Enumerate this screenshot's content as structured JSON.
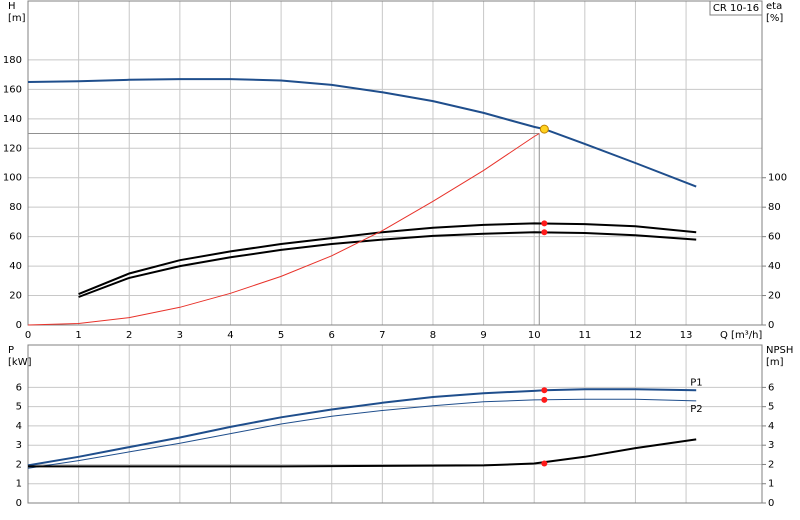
{
  "chart_data": [
    {
      "type": "line",
      "title": "CR 10-16",
      "y_label": [
        "H",
        "[m]"
      ],
      "y2_label": [
        "eta",
        "[%]"
      ],
      "x_label": "Q [m³/h]",
      "xlim": [
        0,
        14.5
      ],
      "xticks": [
        0,
        1,
        2,
        3,
        4,
        5,
        6,
        7,
        8,
        9,
        10,
        11,
        12,
        13
      ],
      "xtick_labels": true,
      "ylim": [
        0,
        220
      ],
      "yticks": [
        0,
        20,
        40,
        60,
        80,
        100,
        120,
        140,
        160,
        180
      ],
      "y2lim": [
        0,
        220
      ],
      "y2ticks": [
        0,
        20,
        40,
        60,
        80,
        100
      ],
      "grid": true,
      "series": [
        {
          "color": "#1f4e8c",
          "style": "thick",
          "axis": "y",
          "x": [
            0,
            1,
            2,
            3,
            4,
            5,
            6,
            7,
            8,
            9,
            10,
            10.2,
            11,
            12,
            13.2
          ],
          "values": [
            165,
            165.5,
            166.5,
            167,
            167,
            166,
            163,
            158,
            152,
            144,
            134.5,
            133,
            123,
            110,
            94
          ]
        },
        {
          "color": "#000000",
          "style": "thick",
          "axis": "y2",
          "x": [
            1,
            2,
            3,
            4,
            5,
            6,
            7,
            8,
            9,
            10,
            11,
            12,
            13.2
          ],
          "values": [
            21,
            35,
            44,
            50,
            55,
            59,
            63,
            66,
            68,
            69,
            68.5,
            67,
            63
          ]
        },
        {
          "color": "#000000",
          "style": "thick",
          "axis": "y2",
          "x": [
            1,
            2,
            3,
            4,
            5,
            6,
            7,
            8,
            9,
            10,
            11,
            12,
            13.2
          ],
          "values": [
            19,
            32,
            40,
            46,
            51,
            55,
            58,
            60.5,
            62,
            63,
            62.5,
            61,
            58
          ]
        },
        {
          "color": "#e8322a",
          "style": "thin",
          "axis": "y",
          "x": [
            0,
            1,
            2,
            3,
            4,
            5,
            6,
            7,
            8,
            9,
            10,
            10.1
          ],
          "values": [
            0,
            1,
            5,
            12,
            21.5,
            33,
            47,
            64,
            84,
            105,
            128,
            130
          ]
        }
      ],
      "crosshair": {
        "x": 10.1,
        "y": 130
      },
      "markers": [
        {
          "x": 10.2,
          "y": 133,
          "color": "#ffd21f",
          "axis": "y"
        },
        {
          "x": 10.2,
          "y": 69,
          "color": "#ff1a1a",
          "axis": "y2"
        },
        {
          "x": 10.2,
          "y": 63,
          "color": "#ff1a1a",
          "axis": "y2"
        }
      ]
    },
    {
      "type": "line",
      "y_label": [
        "P",
        "[kW]"
      ],
      "y2_label": [
        "NPSH",
        "[m]"
      ],
      "xlim": [
        0,
        14.5
      ],
      "xticks": [
        0,
        1,
        2,
        3,
        4,
        5,
        6,
        7,
        8,
        9,
        10,
        11,
        12,
        13
      ],
      "xtick_labels": false,
      "ylim": [
        0,
        8.2
      ],
      "yticks": [
        0,
        1,
        2,
        3,
        4,
        5,
        6
      ],
      "y2lim": [
        0,
        8.2
      ],
      "y2ticks": [
        0,
        1,
        2,
        3,
        4,
        5,
        6
      ],
      "grid": true,
      "series": [
        {
          "name": "P1",
          "color": "#1f4e8c",
          "style": "thick",
          "axis": "y",
          "x": [
            0,
            1,
            2,
            3,
            4,
            5,
            6,
            7,
            8,
            9,
            10,
            10.2,
            11,
            12,
            13.2
          ],
          "values": [
            1.95,
            2.4,
            2.9,
            3.4,
            3.95,
            4.45,
            4.85,
            5.2,
            5.5,
            5.7,
            5.82,
            5.85,
            5.9,
            5.9,
            5.85
          ]
        },
        {
          "name": "P2",
          "color": "#1f4e8c",
          "style": "thin",
          "axis": "y",
          "x": [
            0,
            1,
            2,
            3,
            4,
            5,
            6,
            7,
            8,
            9,
            10,
            11,
            12,
            13.2
          ],
          "values": [
            1.8,
            2.2,
            2.65,
            3.1,
            3.6,
            4.1,
            4.5,
            4.8,
            5.05,
            5.25,
            5.35,
            5.38,
            5.38,
            5.3
          ]
        },
        {
          "color": "#000000",
          "style": "thick",
          "axis": "y2",
          "x": [
            0,
            5,
            9,
            10,
            11,
            12,
            13.2
          ],
          "values": [
            1.9,
            1.9,
            1.95,
            2.05,
            2.4,
            2.85,
            3.3
          ]
        }
      ],
      "markers": [
        {
          "x": 10.2,
          "y": 5.85,
          "color": "#ff1a1a",
          "axis": "y"
        },
        {
          "x": 10.2,
          "y": 5.35,
          "color": "#ff1a1a",
          "axis": "y"
        },
        {
          "x": 10.2,
          "y": 2.05,
          "color": "#ff1a1a",
          "axis": "y2"
        }
      ]
    }
  ]
}
